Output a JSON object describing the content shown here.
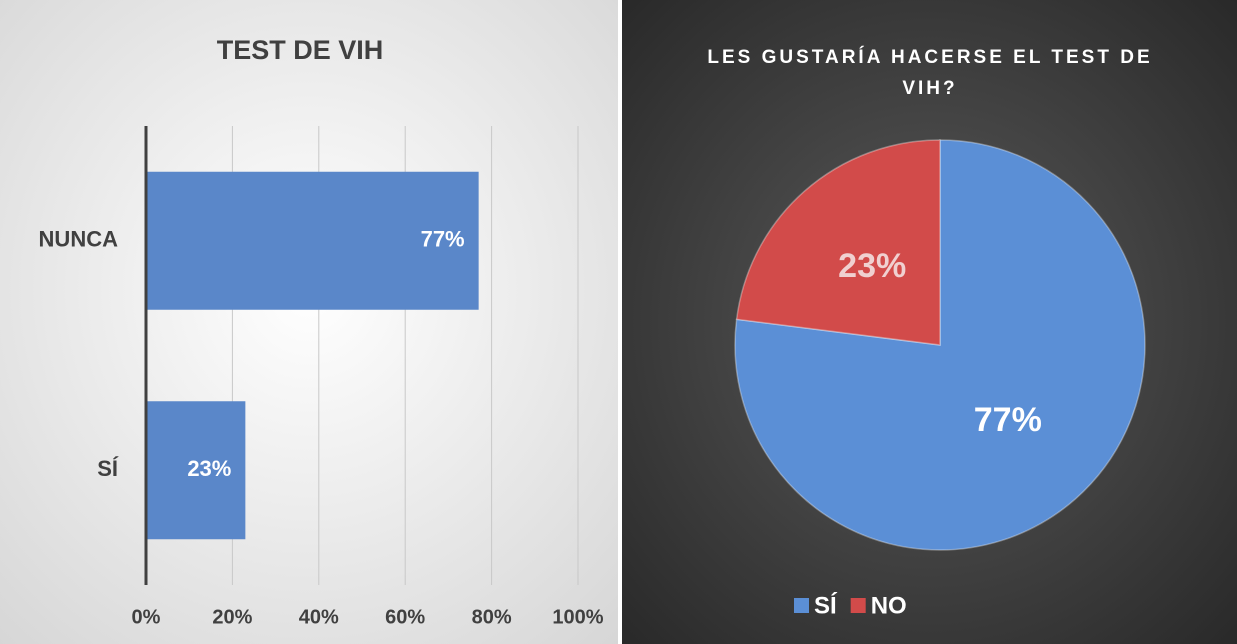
{
  "chart_data": [
    {
      "type": "bar",
      "orientation": "horizontal",
      "title": "TEST DE VIH",
      "categories": [
        "NUNCA",
        "SÍ"
      ],
      "values": [
        77,
        23
      ],
      "value_labels": [
        "77%",
        "23%"
      ],
      "color": "#5a87c9",
      "xlim": [
        0,
        100
      ],
      "xticks": [
        {
          "value": 0,
          "label": "0%"
        },
        {
          "value": 20,
          "label": "20%"
        },
        {
          "value": 40,
          "label": "40%"
        },
        {
          "value": 60,
          "label": "60%"
        },
        {
          "value": 80,
          "label": "80%"
        },
        {
          "value": 100,
          "label": "100%"
        }
      ],
      "grid": true
    },
    {
      "type": "pie",
      "title": "LES GUSTARÍA HACERSE EL TEST DE VIH?",
      "categories": [
        "SÍ",
        "NO"
      ],
      "values": [
        77,
        23
      ],
      "value_labels": [
        "77%",
        "23%"
      ],
      "colors": [
        "#5b8fd6",
        "#d24b4a"
      ],
      "legend": "bottom"
    }
  ]
}
